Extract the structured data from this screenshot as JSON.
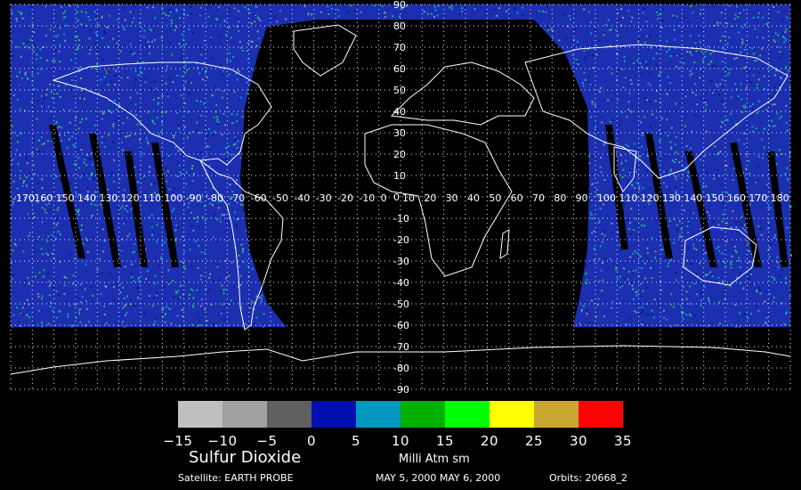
{
  "map": {
    "lat_labels": [
      "90",
      "80",
      "70",
      "60",
      "50",
      "40",
      "30",
      "20",
      "10",
      "0",
      "-10",
      "-20",
      "-30",
      "-40",
      "-50",
      "-60",
      "-70",
      "-80",
      "-90"
    ],
    "lon_labels": [
      "-170",
      "160",
      "150",
      "140",
      "130",
      "120",
      "110",
      "100",
      "-90",
      "-80",
      "-70",
      "-60",
      "-50",
      "-40",
      "-30",
      "-20",
      "-10",
      "0",
      "10",
      "20",
      "30",
      "40",
      "50",
      "60",
      "70",
      "80",
      "90",
      "100",
      "110",
      "120",
      "130",
      "140",
      "150",
      "160",
      "170",
      "180"
    ],
    "colors": {
      "background": "#000000",
      "data_low": "#1b2fb0",
      "data_mid": "#1a98c6",
      "data_high": "#2bb84f",
      "coast": "#ffffff",
      "grid": "#ffffff"
    }
  },
  "colorbar": {
    "colors": [
      "#c0c0c0",
      "#a0a0a0",
      "#606060",
      "#0010b0",
      "#0098c0",
      "#00b000",
      "#00ff00",
      "#ffff00",
      "#c8a830",
      "#ff0000"
    ],
    "ticks": [
      "−15",
      "−10",
      "−5",
      "0",
      "5",
      "10",
      "15",
      "20",
      "25",
      "30",
      "35"
    ]
  },
  "labels": {
    "variable": "Sulfur Dioxide",
    "units": "Milli Atm sm",
    "satellite": "Satellite: EARTH PROBE",
    "dates": "MAY 5, 2000 MAY 6, 2000",
    "orbits": "Orbits: 20668_2"
  }
}
